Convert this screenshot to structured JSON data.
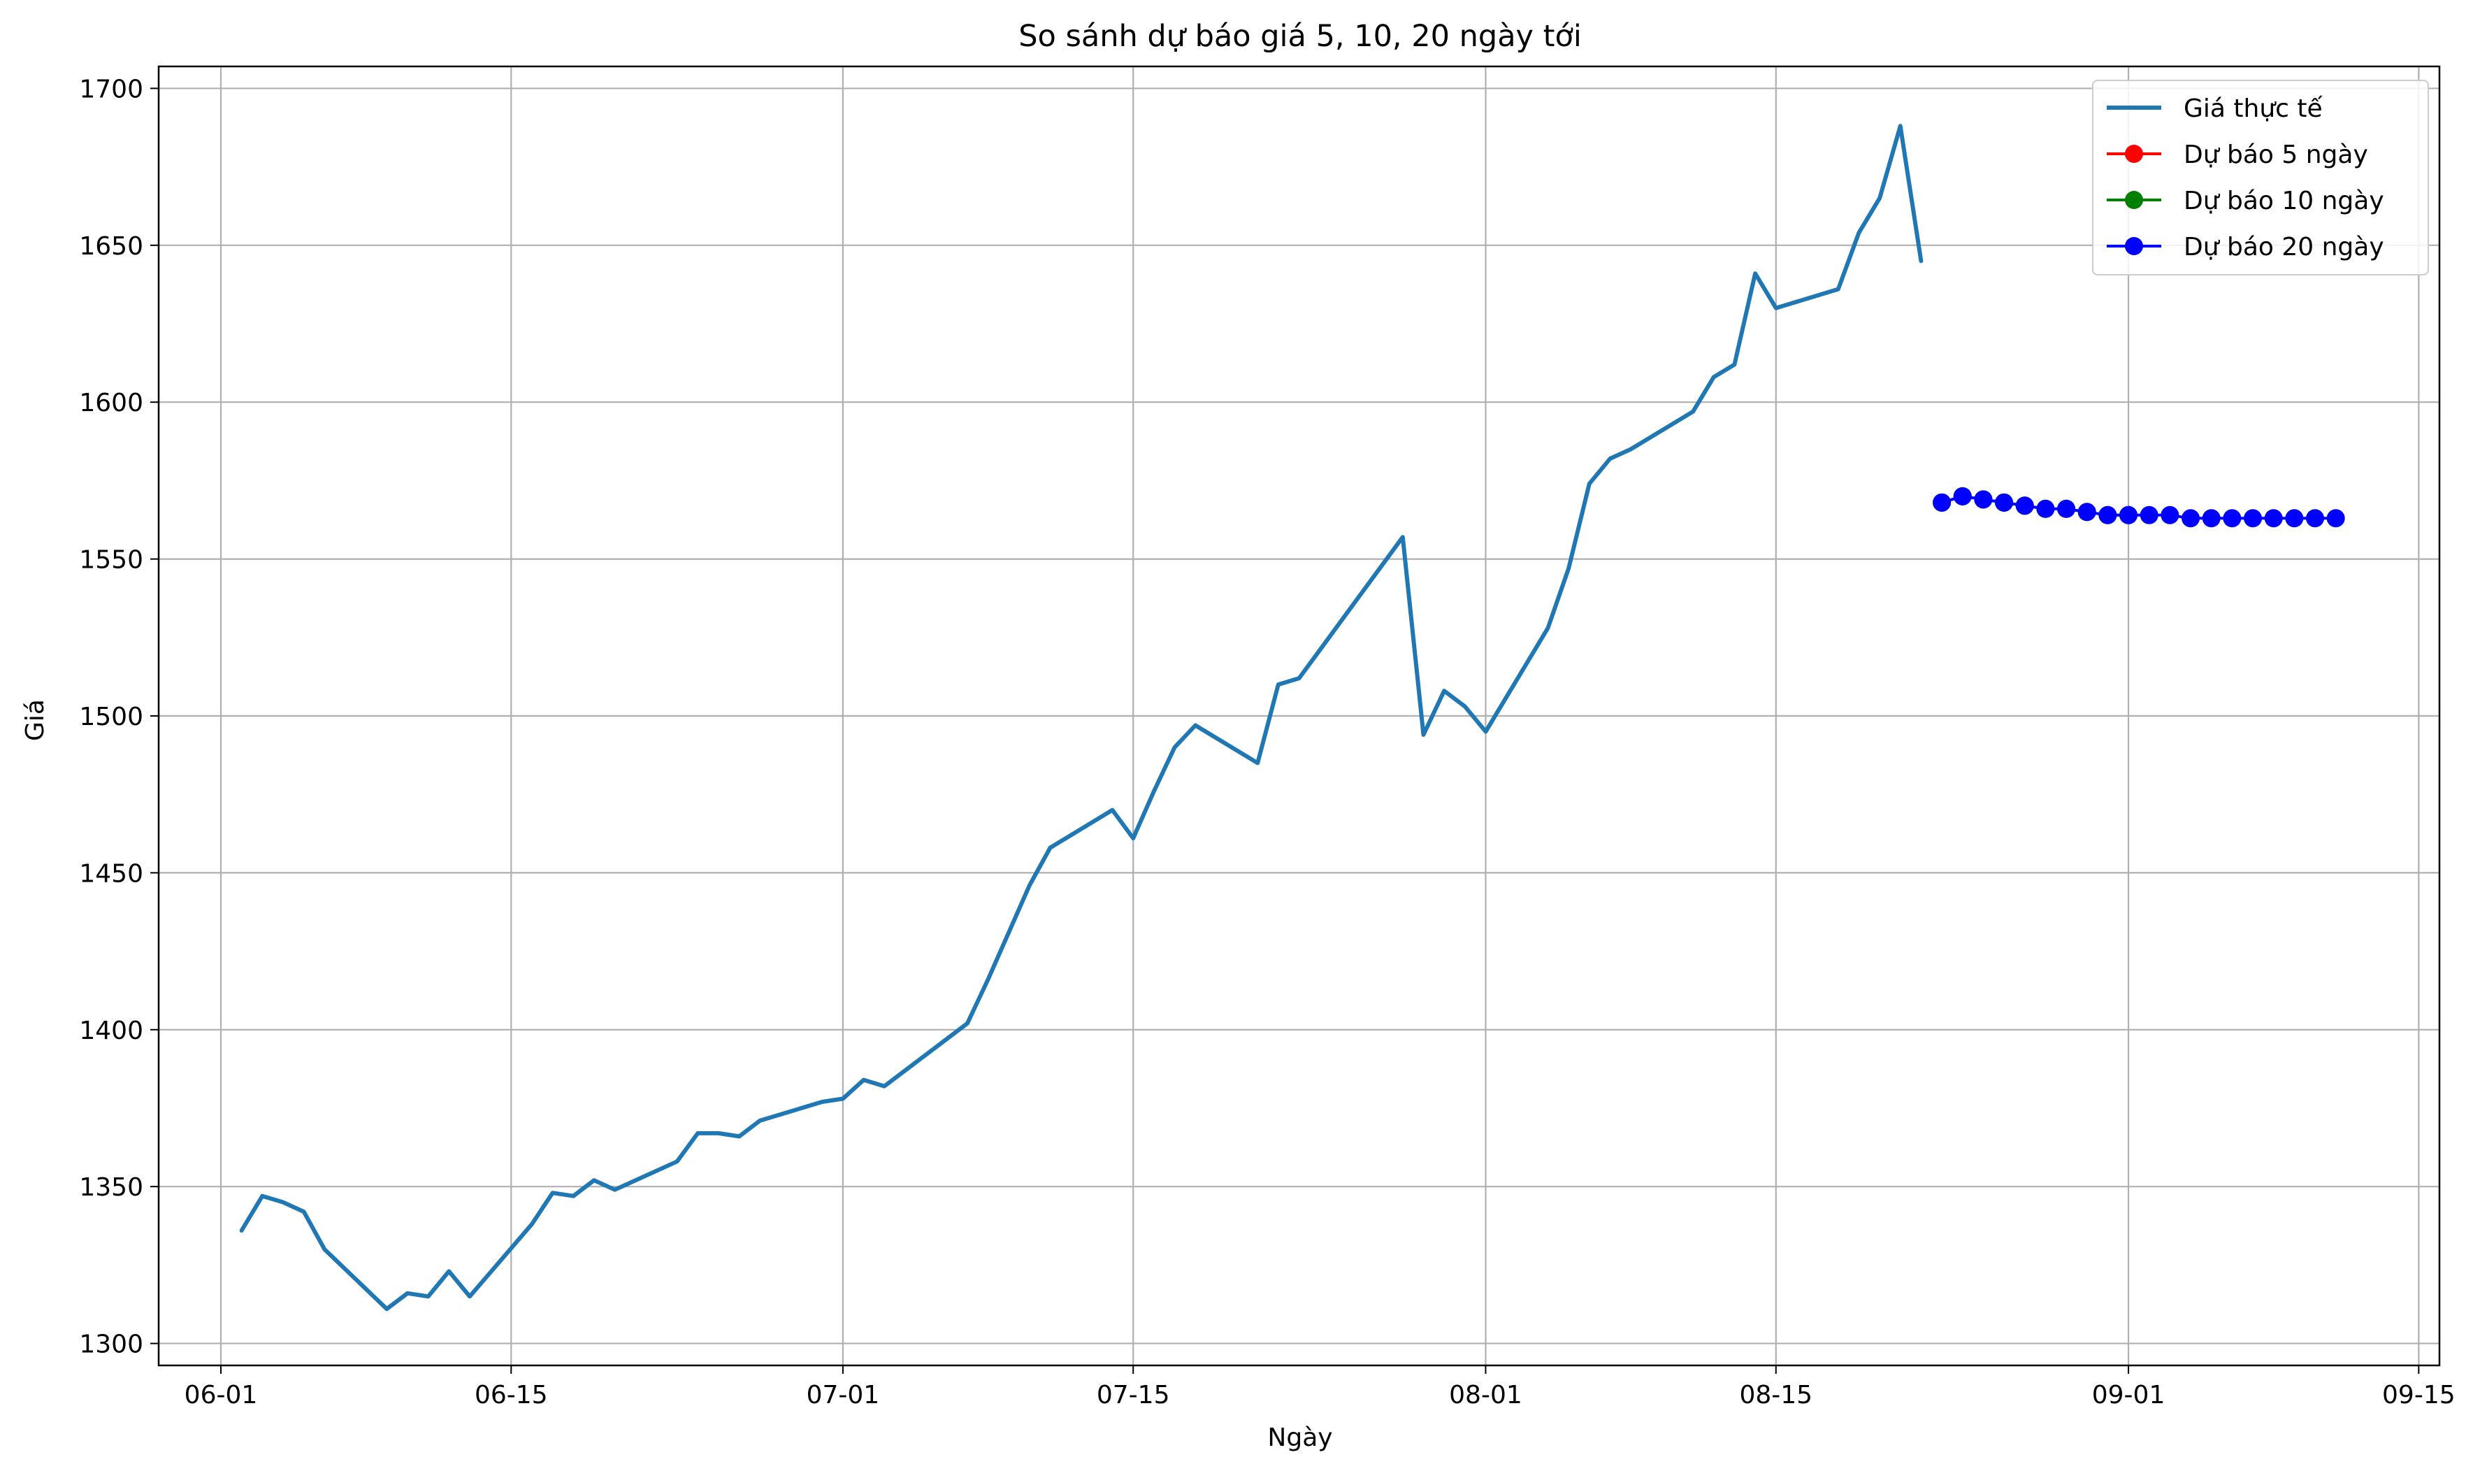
{
  "chart_data": {
    "type": "line",
    "title": "So sánh dự báo giá 5, 10, 20 ngày tới",
    "xlabel": "Ngày",
    "ylabel": "Giá",
    "x_range": [
      "2025-05-29",
      "2025-09-16"
    ],
    "ylim": [
      1293,
      1707
    ],
    "x_ticks": [
      {
        "date": "2025-06-01",
        "label": "06-01"
      },
      {
        "date": "2025-06-15",
        "label": "06-15"
      },
      {
        "date": "2025-07-01",
        "label": "07-01"
      },
      {
        "date": "2025-07-15",
        "label": "07-15"
      },
      {
        "date": "2025-08-01",
        "label": "08-01"
      },
      {
        "date": "2025-08-15",
        "label": "08-15"
      },
      {
        "date": "2025-09-01",
        "label": "09-01"
      },
      {
        "date": "2025-09-15",
        "label": "09-15"
      }
    ],
    "y_ticks": [
      1300,
      1350,
      1400,
      1450,
      1500,
      1550,
      1600,
      1650,
      1700
    ],
    "grid": true,
    "legend_position": "top-right",
    "series": [
      {
        "name": "Giá thực tế",
        "color": "#1f77b4",
        "marker": "none",
        "points": [
          [
            "2025-06-02",
            1336
          ],
          [
            "2025-06-03",
            1347
          ],
          [
            "2025-06-04",
            1345
          ],
          [
            "2025-06-05",
            1342
          ],
          [
            "2025-06-06",
            1330
          ],
          [
            "2025-06-09",
            1311
          ],
          [
            "2025-06-10",
            1316
          ],
          [
            "2025-06-11",
            1315
          ],
          [
            "2025-06-12",
            1323
          ],
          [
            "2025-06-13",
            1315
          ],
          [
            "2025-06-16",
            1338
          ],
          [
            "2025-06-17",
            1348
          ],
          [
            "2025-06-18",
            1347
          ],
          [
            "2025-06-19",
            1352
          ],
          [
            "2025-06-20",
            1349
          ],
          [
            "2025-06-23",
            1358
          ],
          [
            "2025-06-24",
            1367
          ],
          [
            "2025-06-25",
            1367
          ],
          [
            "2025-06-26",
            1366
          ],
          [
            "2025-06-27",
            1371
          ],
          [
            "2025-06-30",
            1377
          ],
          [
            "2025-07-01",
            1378
          ],
          [
            "2025-07-02",
            1384
          ],
          [
            "2025-07-03",
            1382
          ],
          [
            "2025-07-07",
            1402
          ],
          [
            "2025-07-08",
            1416
          ],
          [
            "2025-07-09",
            1431
          ],
          [
            "2025-07-10",
            1446
          ],
          [
            "2025-07-11",
            1458
          ],
          [
            "2025-07-14",
            1470
          ],
          [
            "2025-07-15",
            1461
          ],
          [
            "2025-07-16",
            1476
          ],
          [
            "2025-07-17",
            1490
          ],
          [
            "2025-07-18",
            1497
          ],
          [
            "2025-07-21",
            1485
          ],
          [
            "2025-07-22",
            1510
          ],
          [
            "2025-07-23",
            1512
          ],
          [
            "2025-07-24",
            1521
          ],
          [
            "2025-07-25",
            1530
          ],
          [
            "2025-07-28",
            1557
          ],
          [
            "2025-07-29",
            1494
          ],
          [
            "2025-07-30",
            1508
          ],
          [
            "2025-07-31",
            1503
          ],
          [
            "2025-08-01",
            1495
          ],
          [
            "2025-08-04",
            1528
          ],
          [
            "2025-08-05",
            1547
          ],
          [
            "2025-08-06",
            1574
          ],
          [
            "2025-08-07",
            1582
          ],
          [
            "2025-08-08",
            1585
          ],
          [
            "2025-08-11",
            1597
          ],
          [
            "2025-08-12",
            1608
          ],
          [
            "2025-08-13",
            1612
          ],
          [
            "2025-08-14",
            1641
          ],
          [
            "2025-08-15",
            1630
          ],
          [
            "2025-08-18",
            1636
          ],
          [
            "2025-08-19",
            1654
          ],
          [
            "2025-08-20",
            1665
          ],
          [
            "2025-08-21",
            1688
          ],
          [
            "2025-08-22",
            1645
          ]
        ]
      },
      {
        "name": "Dự báo 5 ngày",
        "color": "#ff0000",
        "marker": "circle",
        "points": [
          [
            "2025-08-23",
            1568
          ],
          [
            "2025-08-24",
            1570
          ],
          [
            "2025-08-25",
            1569
          ],
          [
            "2025-08-26",
            1568
          ],
          [
            "2025-08-27",
            1567
          ]
        ]
      },
      {
        "name": "Dự báo 10 ngày",
        "color": "#008000",
        "marker": "circle",
        "points": [
          [
            "2025-08-23",
            1568
          ],
          [
            "2025-08-24",
            1570
          ],
          [
            "2025-08-25",
            1569
          ],
          [
            "2025-08-26",
            1568
          ],
          [
            "2025-08-27",
            1567
          ],
          [
            "2025-08-28",
            1566
          ],
          [
            "2025-08-29",
            1566
          ],
          [
            "2025-08-30",
            1565
          ],
          [
            "2025-08-31",
            1564
          ],
          [
            "2025-09-01",
            1564
          ]
        ]
      },
      {
        "name": "Dự báo 20 ngày",
        "color": "#0000ff",
        "marker": "circle",
        "points": [
          [
            "2025-08-23",
            1568
          ],
          [
            "2025-08-24",
            1570
          ],
          [
            "2025-08-25",
            1569
          ],
          [
            "2025-08-26",
            1568
          ],
          [
            "2025-08-27",
            1567
          ],
          [
            "2025-08-28",
            1566
          ],
          [
            "2025-08-29",
            1566
          ],
          [
            "2025-08-30",
            1565
          ],
          [
            "2025-08-31",
            1564
          ],
          [
            "2025-09-01",
            1564
          ],
          [
            "2025-09-02",
            1564
          ],
          [
            "2025-09-03",
            1564
          ],
          [
            "2025-09-04",
            1563
          ],
          [
            "2025-09-05",
            1563
          ],
          [
            "2025-09-06",
            1563
          ],
          [
            "2025-09-07",
            1563
          ],
          [
            "2025-09-08",
            1563
          ],
          [
            "2025-09-09",
            1563
          ],
          [
            "2025-09-10",
            1563
          ],
          [
            "2025-09-11",
            1563
          ]
        ]
      }
    ]
  }
}
